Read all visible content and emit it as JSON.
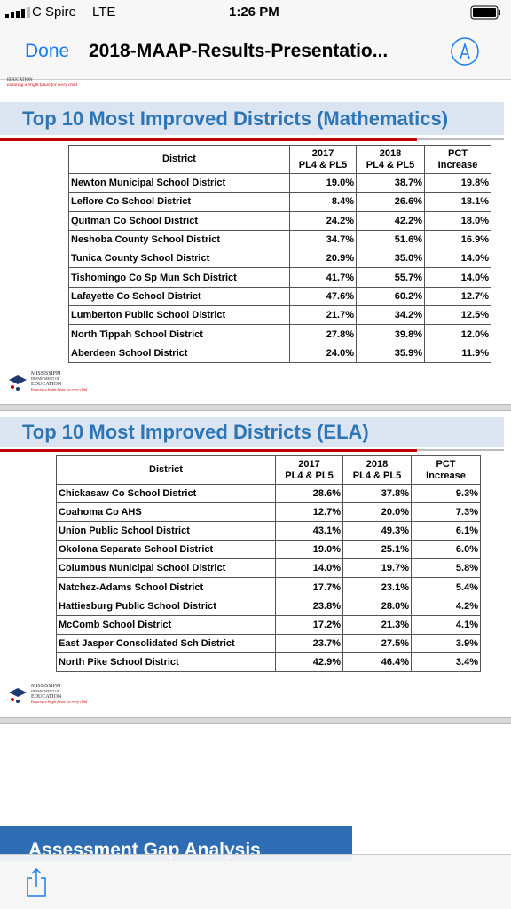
{
  "status_bar": {
    "carrier": "C Spire",
    "network": "LTE",
    "time": "1:26 PM"
  },
  "nav_bar": {
    "done": "Done",
    "title": "2018-MAAP-Results-Presentatio..."
  },
  "logo": {
    "lines": [
      "MISSISSIPPI",
      "DEPARTMENT OF",
      "EDUCATION"
    ],
    "tagline": "Ensuring a bright future for every child"
  },
  "slides": [
    {
      "title": "Top 10 Most Improved Districts (Mathematics)",
      "table": {
        "header": [
          [
            "District"
          ],
          [
            "2017",
            "PL4 & PL5"
          ],
          [
            "2018",
            "PL4 & PL5"
          ],
          [
            "PCT",
            "Increase"
          ]
        ],
        "rows": [
          [
            "Newton Municipal School District",
            "19.0%",
            "38.7%",
            "19.8%"
          ],
          [
            "Leflore Co School District",
            "8.4%",
            "26.6%",
            "18.1%"
          ],
          [
            "Quitman Co School District",
            "24.2%",
            "42.2%",
            "18.0%"
          ],
          [
            "Neshoba County School District",
            "34.7%",
            "51.6%",
            "16.9%"
          ],
          [
            "Tunica County School District",
            "20.9%",
            "35.0%",
            "14.0%"
          ],
          [
            "Tishomingo Co Sp Mun Sch District",
            "41.7%",
            "55.7%",
            "14.0%"
          ],
          [
            "Lafayette Co School District",
            "47.6%",
            "60.2%",
            "12.7%"
          ],
          [
            "Lumberton Public School District",
            "21.7%",
            "34.2%",
            "12.5%"
          ],
          [
            "North Tippah School District",
            "27.8%",
            "39.8%",
            "12.0%"
          ],
          [
            "Aberdeen School District",
            "24.0%",
            "35.9%",
            "11.9%"
          ]
        ]
      }
    },
    {
      "title": "Top 10 Most Improved Districts (ELA)",
      "table": {
        "header": [
          [
            "District"
          ],
          [
            "2017",
            "PL4 & PL5"
          ],
          [
            "2018",
            "PL4 & PL5"
          ],
          [
            "PCT",
            "Increase"
          ]
        ],
        "rows": [
          [
            "Chickasaw Co School District",
            "28.6%",
            "37.8%",
            "9.3%"
          ],
          [
            "Coahoma Co AHS",
            "12.7%",
            "20.0%",
            "7.3%"
          ],
          [
            "Union Public School District",
            "43.1%",
            "49.3%",
            "6.1%"
          ],
          [
            "Okolona Separate School District",
            "19.0%",
            "25.1%",
            "6.0%"
          ],
          [
            "Columbus Municipal School District",
            "14.0%",
            "19.7%",
            "5.8%"
          ],
          [
            "Natchez-Adams School District",
            "17.7%",
            "23.1%",
            "5.4%"
          ],
          [
            "Hattiesburg Public School District",
            "23.8%",
            "28.0%",
            "4.2%"
          ],
          [
            "McComb School District",
            "17.2%",
            "21.3%",
            "4.1%"
          ],
          [
            "East Jasper Consolidated Sch District",
            "23.7%",
            "27.5%",
            "3.9%"
          ],
          [
            "North Pike School District",
            "42.9%",
            "46.4%",
            "3.4%"
          ]
        ]
      }
    }
  ],
  "next_slide": {
    "title": "Assessment Gap Analysis"
  }
}
